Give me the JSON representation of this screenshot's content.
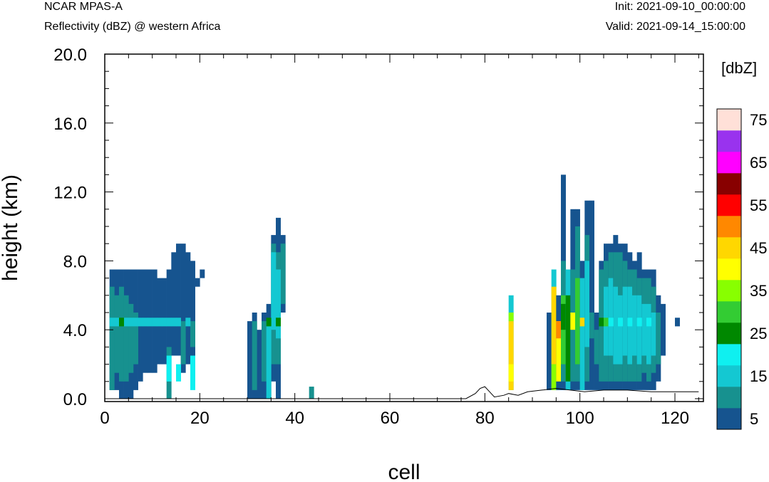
{
  "header": {
    "model": "NCAR MPAS-A",
    "field": "Reflectivity (dBZ) @ western Africa",
    "init": "Init: 2021-09-10_00:00:00",
    "valid": "Valid: 2021-09-14_15:00:00"
  },
  "chart_data": {
    "type": "heatmap",
    "xlabel": "cell",
    "ylabel": "height (km)",
    "xlim": [
      0,
      126
    ],
    "ylim": [
      0,
      20
    ],
    "x_ticks": [
      "0",
      "20",
      "40",
      "60",
      "80",
      "100",
      "120"
    ],
    "y_ticks": [
      "0.0",
      "4.0",
      "8.0",
      "12.0",
      "16.0",
      "20.0"
    ],
    "colorbar": {
      "title": "[dbZ]",
      "levels": [
        5,
        10,
        15,
        20,
        25,
        30,
        35,
        40,
        45,
        50,
        55,
        60,
        65,
        70,
        75
      ],
      "labels": [
        "5",
        "15",
        "25",
        "35",
        "45",
        "55",
        "65",
        "75"
      ],
      "colors": [
        "#16548f",
        "#17918f",
        "#14c8d2",
        "#0ff0f0",
        "#008800",
        "#33cc33",
        "#88ff00",
        "#ffff00",
        "#ffd700",
        "#ff8800",
        "#ff0000",
        "#880000",
        "#ff00ff",
        "#9933ee",
        "#ffe0d8"
      ]
    },
    "cell_height_km": 0.5,
    "cells": [
      [
        1,
        0.5,
        7.5,
        5
      ],
      [
        2,
        0.5,
        7.5,
        5
      ],
      [
        3,
        0.0,
        7.5,
        5
      ],
      [
        4,
        0.0,
        7.5,
        5
      ],
      [
        5,
        0.0,
        7.5,
        5
      ],
      [
        6,
        0.5,
        7.5,
        5
      ],
      [
        7,
        1.0,
        7.5,
        5
      ],
      [
        8,
        1.5,
        7.5,
        5
      ],
      [
        9,
        1.5,
        7.5,
        5
      ],
      [
        10,
        1.5,
        7.5,
        5
      ],
      [
        11,
        2.0,
        7.0,
        5
      ],
      [
        12,
        2.0,
        7.0,
        5
      ],
      [
        13,
        2.5,
        7.5,
        5
      ],
      [
        14,
        2.5,
        8.5,
        5
      ],
      [
        15,
        2.5,
        9.0,
        5
      ],
      [
        16,
        1.5,
        9.0,
        5
      ],
      [
        17,
        2.0,
        8.5,
        5
      ],
      [
        18,
        1.0,
        8.0,
        5
      ],
      [
        19,
        6.5,
        7.0,
        5
      ],
      [
        20,
        7.0,
        7.5,
        5
      ],
      [
        1,
        0.5,
        6.5,
        10
      ],
      [
        2,
        1.5,
        6.0,
        10
      ],
      [
        3,
        1.0,
        6.5,
        10
      ],
      [
        4,
        1.0,
        6.0,
        10
      ],
      [
        5,
        1.5,
        5.5,
        10
      ],
      [
        6,
        2.0,
        5.0,
        10
      ],
      [
        13,
        0.0,
        3.0,
        10
      ],
      [
        16,
        2.0,
        4.5,
        10
      ],
      [
        18,
        3.0,
        4.5,
        10
      ],
      [
        1,
        4.2,
        4.7,
        15
      ],
      [
        2,
        4.2,
        4.7,
        15
      ],
      [
        4,
        4.2,
        4.7,
        15
      ],
      [
        5,
        4.2,
        4.7,
        15
      ],
      [
        6,
        4.2,
        4.7,
        15
      ],
      [
        7,
        4.2,
        4.7,
        15
      ],
      [
        8,
        4.2,
        4.7,
        15
      ],
      [
        9,
        4.2,
        4.7,
        15
      ],
      [
        10,
        4.2,
        4.7,
        15
      ],
      [
        11,
        4.2,
        4.7,
        15
      ],
      [
        12,
        4.2,
        4.7,
        15
      ],
      [
        13,
        4.2,
        4.7,
        15
      ],
      [
        14,
        4.2,
        4.7,
        15
      ],
      [
        15,
        4.2,
        4.7,
        15
      ],
      [
        17,
        4.2,
        4.7,
        15
      ],
      [
        13,
        1.0,
        2.5,
        20
      ],
      [
        15,
        1.0,
        2.0,
        20
      ],
      [
        18,
        0.5,
        2.5,
        20
      ],
      [
        3,
        4.2,
        4.7,
        25
      ],
      [
        30,
        0.0,
        4.5,
        5
      ],
      [
        31,
        0.0,
        5.0,
        5
      ],
      [
        32,
        0.0,
        4.0,
        5
      ],
      [
        33,
        0.0,
        5.0,
        5
      ],
      [
        34,
        0.0,
        5.5,
        5
      ],
      [
        35,
        1.0,
        9.5,
        5
      ],
      [
        36,
        0.0,
        10.5,
        5
      ],
      [
        37,
        5.0,
        9.5,
        5
      ],
      [
        31,
        0.5,
        4.5,
        10
      ],
      [
        33,
        1.0,
        4.5,
        10
      ],
      [
        35,
        2.0,
        9.0,
        10
      ],
      [
        36,
        2.0,
        8.5,
        10
      ],
      [
        37,
        5.5,
        9.0,
        10
      ],
      [
        34,
        0.0,
        4.5,
        15
      ],
      [
        35,
        4.0,
        8.5,
        15
      ],
      [
        36,
        3.5,
        7.5,
        15
      ],
      [
        34,
        4.2,
        4.7,
        25
      ],
      [
        36,
        4.2,
        4.7,
        25
      ],
      [
        43,
        0.0,
        0.7,
        10
      ],
      [
        85,
        0.5,
        6.0,
        15
      ],
      [
        85,
        4.5,
        5.0,
        35
      ],
      [
        85,
        0.5,
        4.5,
        45
      ],
      [
        85,
        1.0,
        2.0,
        40
      ],
      [
        93,
        0.5,
        5.0,
        5
      ],
      [
        94,
        0.5,
        7.5,
        15
      ],
      [
        94,
        2.0,
        6.5,
        45
      ],
      [
        94,
        0.5,
        2.0,
        35
      ],
      [
        95,
        0.5,
        6.0,
        5
      ],
      [
        95,
        1.0,
        4.5,
        40
      ],
      [
        95,
        3.5,
        4.5,
        50
      ],
      [
        96,
        0.5,
        13.0,
        5
      ],
      [
        96,
        1.0,
        8.0,
        10
      ],
      [
        96,
        2.0,
        6.0,
        30
      ],
      [
        96,
        4.0,
        5.5,
        25
      ],
      [
        97,
        0.5,
        7.5,
        15
      ],
      [
        97,
        1.0,
        6.0,
        25
      ],
      [
        98,
        0.5,
        11.0,
        5
      ],
      [
        98,
        1.0,
        7.5,
        10
      ],
      [
        98,
        4.0,
        5.0,
        40
      ],
      [
        99,
        0.5,
        11.0,
        5
      ],
      [
        99,
        1.0,
        10.0,
        10
      ],
      [
        99,
        2.0,
        7.0,
        30
      ],
      [
        100,
        0.5,
        8.0,
        5
      ],
      [
        100,
        0.5,
        7.0,
        15
      ],
      [
        100,
        4.2,
        4.7,
        45
      ],
      [
        101,
        0.5,
        11.5,
        5
      ],
      [
        101,
        1.0,
        9.5,
        10
      ],
      [
        101,
        3.0,
        8.0,
        15
      ],
      [
        102,
        0.5,
        11.5,
        5
      ],
      [
        102,
        3.5,
        5.0,
        10
      ],
      [
        103,
        0.5,
        5.0,
        5
      ],
      [
        103,
        2.0,
        4.0,
        10
      ],
      [
        104,
        0.5,
        8.0,
        5
      ],
      [
        104,
        1.0,
        7.5,
        10
      ],
      [
        104,
        4.2,
        4.7,
        25
      ],
      [
        105,
        0.5,
        9.0,
        5
      ],
      [
        105,
        1.0,
        8.0,
        10
      ],
      [
        105,
        2.5,
        6.5,
        15
      ],
      [
        105,
        4.2,
        4.7,
        30
      ],
      [
        106,
        0.5,
        9.0,
        5
      ],
      [
        106,
        1.0,
        8.5,
        10
      ],
      [
        106,
        2.5,
        7.0,
        15
      ],
      [
        107,
        0.5,
        9.5,
        5
      ],
      [
        107,
        1.0,
        8.5,
        10
      ],
      [
        107,
        2.0,
        6.5,
        15
      ],
      [
        108,
        0.5,
        9.0,
        5
      ],
      [
        108,
        1.0,
        8.5,
        10
      ],
      [
        108,
        2.0,
        6.0,
        15
      ],
      [
        109,
        0.5,
        9.0,
        5
      ],
      [
        109,
        1.0,
        8.0,
        10
      ],
      [
        109,
        2.5,
        6.5,
        15
      ],
      [
        110,
        0.5,
        8.5,
        5
      ],
      [
        110,
        1.0,
        7.5,
        10
      ],
      [
        110,
        2.0,
        6.5,
        15
      ],
      [
        111,
        0.5,
        8.0,
        5
      ],
      [
        111,
        1.0,
        7.5,
        10
      ],
      [
        111,
        2.5,
        6.0,
        15
      ],
      [
        112,
        0.5,
        8.5,
        5
      ],
      [
        112,
        1.0,
        7.0,
        10
      ],
      [
        112,
        2.0,
        6.0,
        15
      ],
      [
        113,
        0.5,
        7.5,
        5
      ],
      [
        113,
        1.5,
        7.0,
        10
      ],
      [
        113,
        2.5,
        5.5,
        15
      ],
      [
        114,
        0.5,
        7.5,
        5
      ],
      [
        114,
        1.0,
        7.0,
        10
      ],
      [
        114,
        2.0,
        5.5,
        15
      ],
      [
        115,
        0.5,
        7.5,
        5
      ],
      [
        115,
        1.5,
        6.5,
        10
      ],
      [
        115,
        2.5,
        5.0,
        15
      ],
      [
        116,
        1.0,
        6.0,
        5
      ],
      [
        116,
        2.0,
        5.0,
        10
      ],
      [
        117,
        2.5,
        5.5,
        5
      ],
      [
        120,
        4.2,
        4.7,
        5
      ],
      [
        106,
        4.2,
        4.7,
        20
      ],
      [
        108,
        4.2,
        4.7,
        20
      ],
      [
        110,
        4.2,
        4.7,
        20
      ],
      [
        112,
        4.2,
        4.7,
        20
      ],
      [
        114,
        4.2,
        4.7,
        20
      ]
    ],
    "terrain": [
      [
        0,
        0.0
      ],
      [
        76,
        0.0
      ],
      [
        78,
        0.3
      ],
      [
        79,
        0.6
      ],
      [
        80,
        0.7
      ],
      [
        81,
        0.4
      ],
      [
        82,
        0.1
      ],
      [
        84,
        0.2
      ],
      [
        85,
        0.3
      ],
      [
        87,
        0.2
      ],
      [
        89,
        0.4
      ],
      [
        92,
        0.5
      ],
      [
        95,
        0.6
      ],
      [
        98,
        0.5
      ],
      [
        101,
        0.4
      ],
      [
        105,
        0.5
      ],
      [
        110,
        0.5
      ],
      [
        115,
        0.4
      ],
      [
        120,
        0.4
      ],
      [
        125,
        0.4
      ]
    ]
  }
}
